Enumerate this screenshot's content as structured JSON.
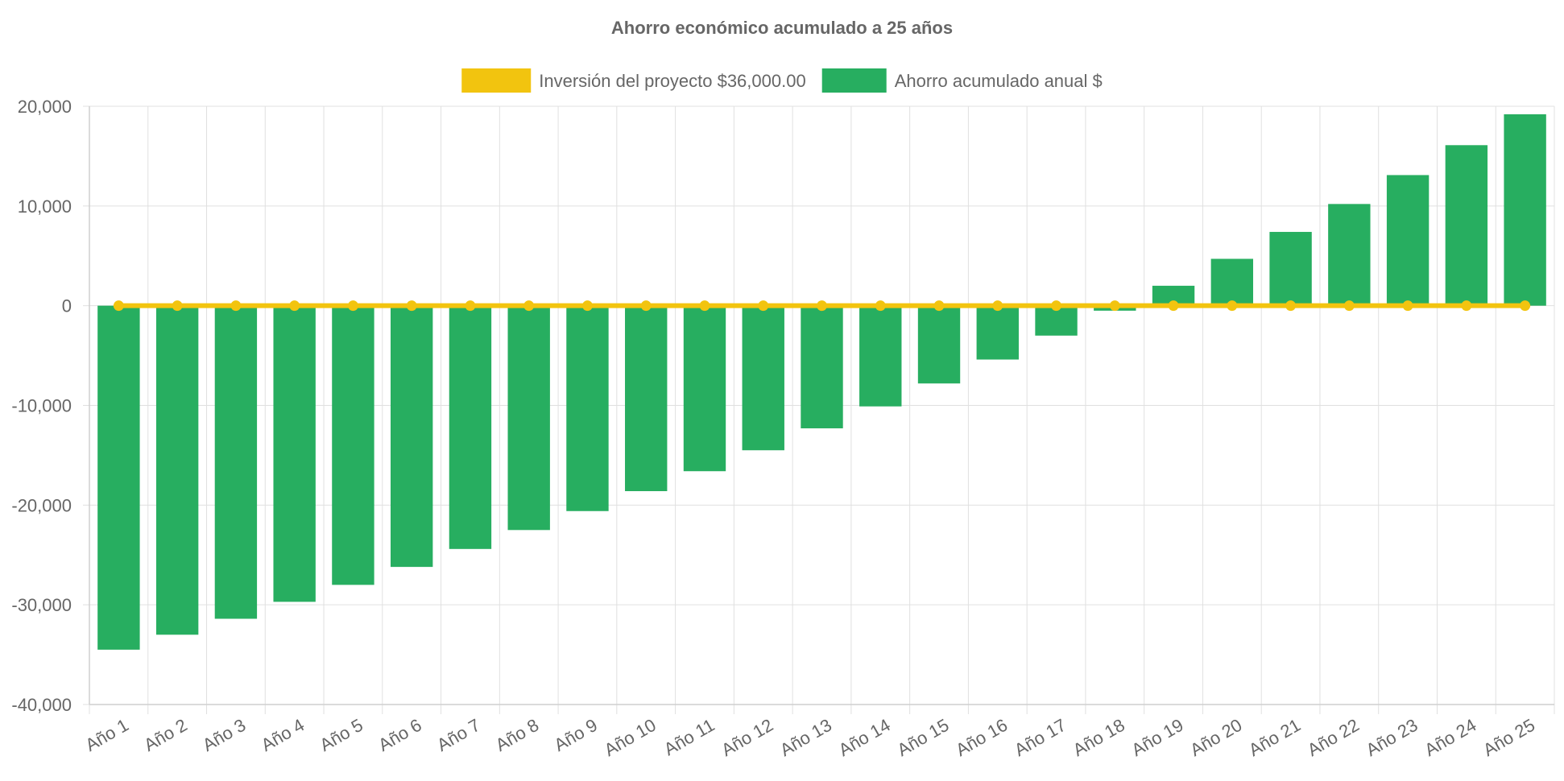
{
  "chart_data": {
    "type": "bar",
    "title": "Ahorro económico acumulado a 25 años",
    "categories": [
      "Año 1",
      "Año 2",
      "Año 3",
      "Año 4",
      "Año 5",
      "Año 6",
      "Año 7",
      "Año 8",
      "Año 9",
      "Año 10",
      "Año 11",
      "Año 12",
      "Año 13",
      "Año 14",
      "Año 15",
      "Año 16",
      "Año 17",
      "Año 18",
      "Año 19",
      "Año 20",
      "Año 21",
      "Año 22",
      "Año 23",
      "Año 24",
      "Año 25"
    ],
    "series": [
      {
        "name": "Inversión del proyecto $36,000.00",
        "type": "line",
        "color": "#f2c40f",
        "values": [
          0,
          0,
          0,
          0,
          0,
          0,
          0,
          0,
          0,
          0,
          0,
          0,
          0,
          0,
          0,
          0,
          0,
          0,
          0,
          0,
          0,
          0,
          0,
          0,
          0
        ]
      },
      {
        "name": "Ahorro acumulado anual $",
        "type": "bar",
        "color": "#27ae60",
        "values": [
          -34500,
          -33000,
          -31400,
          -29700,
          -28000,
          -26200,
          -24400,
          -22500,
          -20600,
          -18600,
          -16600,
          -14500,
          -12300,
          -10100,
          -7800,
          -5400,
          -3000,
          -500,
          2000,
          4700,
          7400,
          10200,
          13100,
          16100,
          19200
        ]
      }
    ],
    "ylim": [
      -40000,
      20000
    ],
    "yticks": [
      20000,
      10000,
      0,
      -10000,
      -20000,
      -30000,
      -40000
    ],
    "ytick_labels": [
      "20,000",
      "10,000",
      "0",
      "-10,000",
      "-20,000",
      "-30,000",
      "-40,000"
    ],
    "xlabel": "",
    "ylabel": "",
    "grid": true,
    "legend_position": "top-center"
  }
}
